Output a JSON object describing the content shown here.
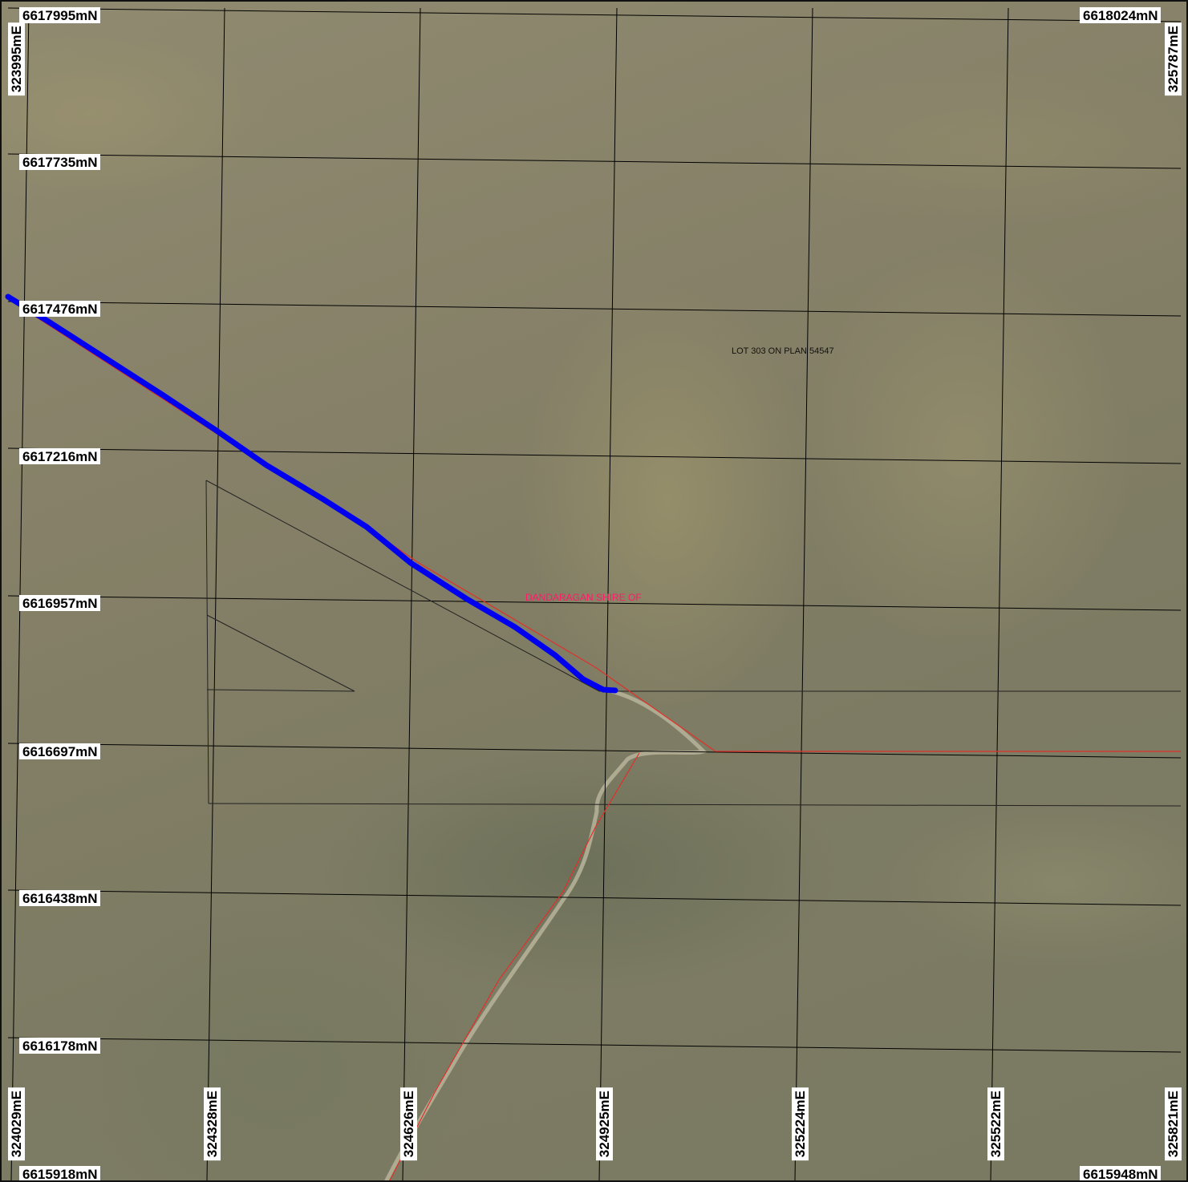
{
  "northing_labels": {
    "top_left": "6617995mN",
    "top_right": "6618024mN",
    "row_1": "6617735mN",
    "row_2": "6617476mN",
    "row_3": "6617216mN",
    "row_4": "6616957mN",
    "row_5": "6616697mN",
    "row_6": "6616438mN",
    "row_7": "6616178mN",
    "bottom_left": "6615918mN",
    "bottom_right": "6615948mN"
  },
  "easting_labels": {
    "top_left": "323995mE",
    "top_right": "325787mE",
    "bottom": [
      "324029mE",
      "324328mE",
      "324626mE",
      "324925mE",
      "325224mE",
      "325522mE",
      "325821mE"
    ]
  },
  "annotations": {
    "lot": "LOT 303 ON PLAN 54547",
    "shire": "DANDARAGAN  SHIRE OF"
  },
  "colors": {
    "route": "#0000ee",
    "boundary": "#e0302a",
    "shire_text": "#ff1a66",
    "grid": "#000000"
  }
}
